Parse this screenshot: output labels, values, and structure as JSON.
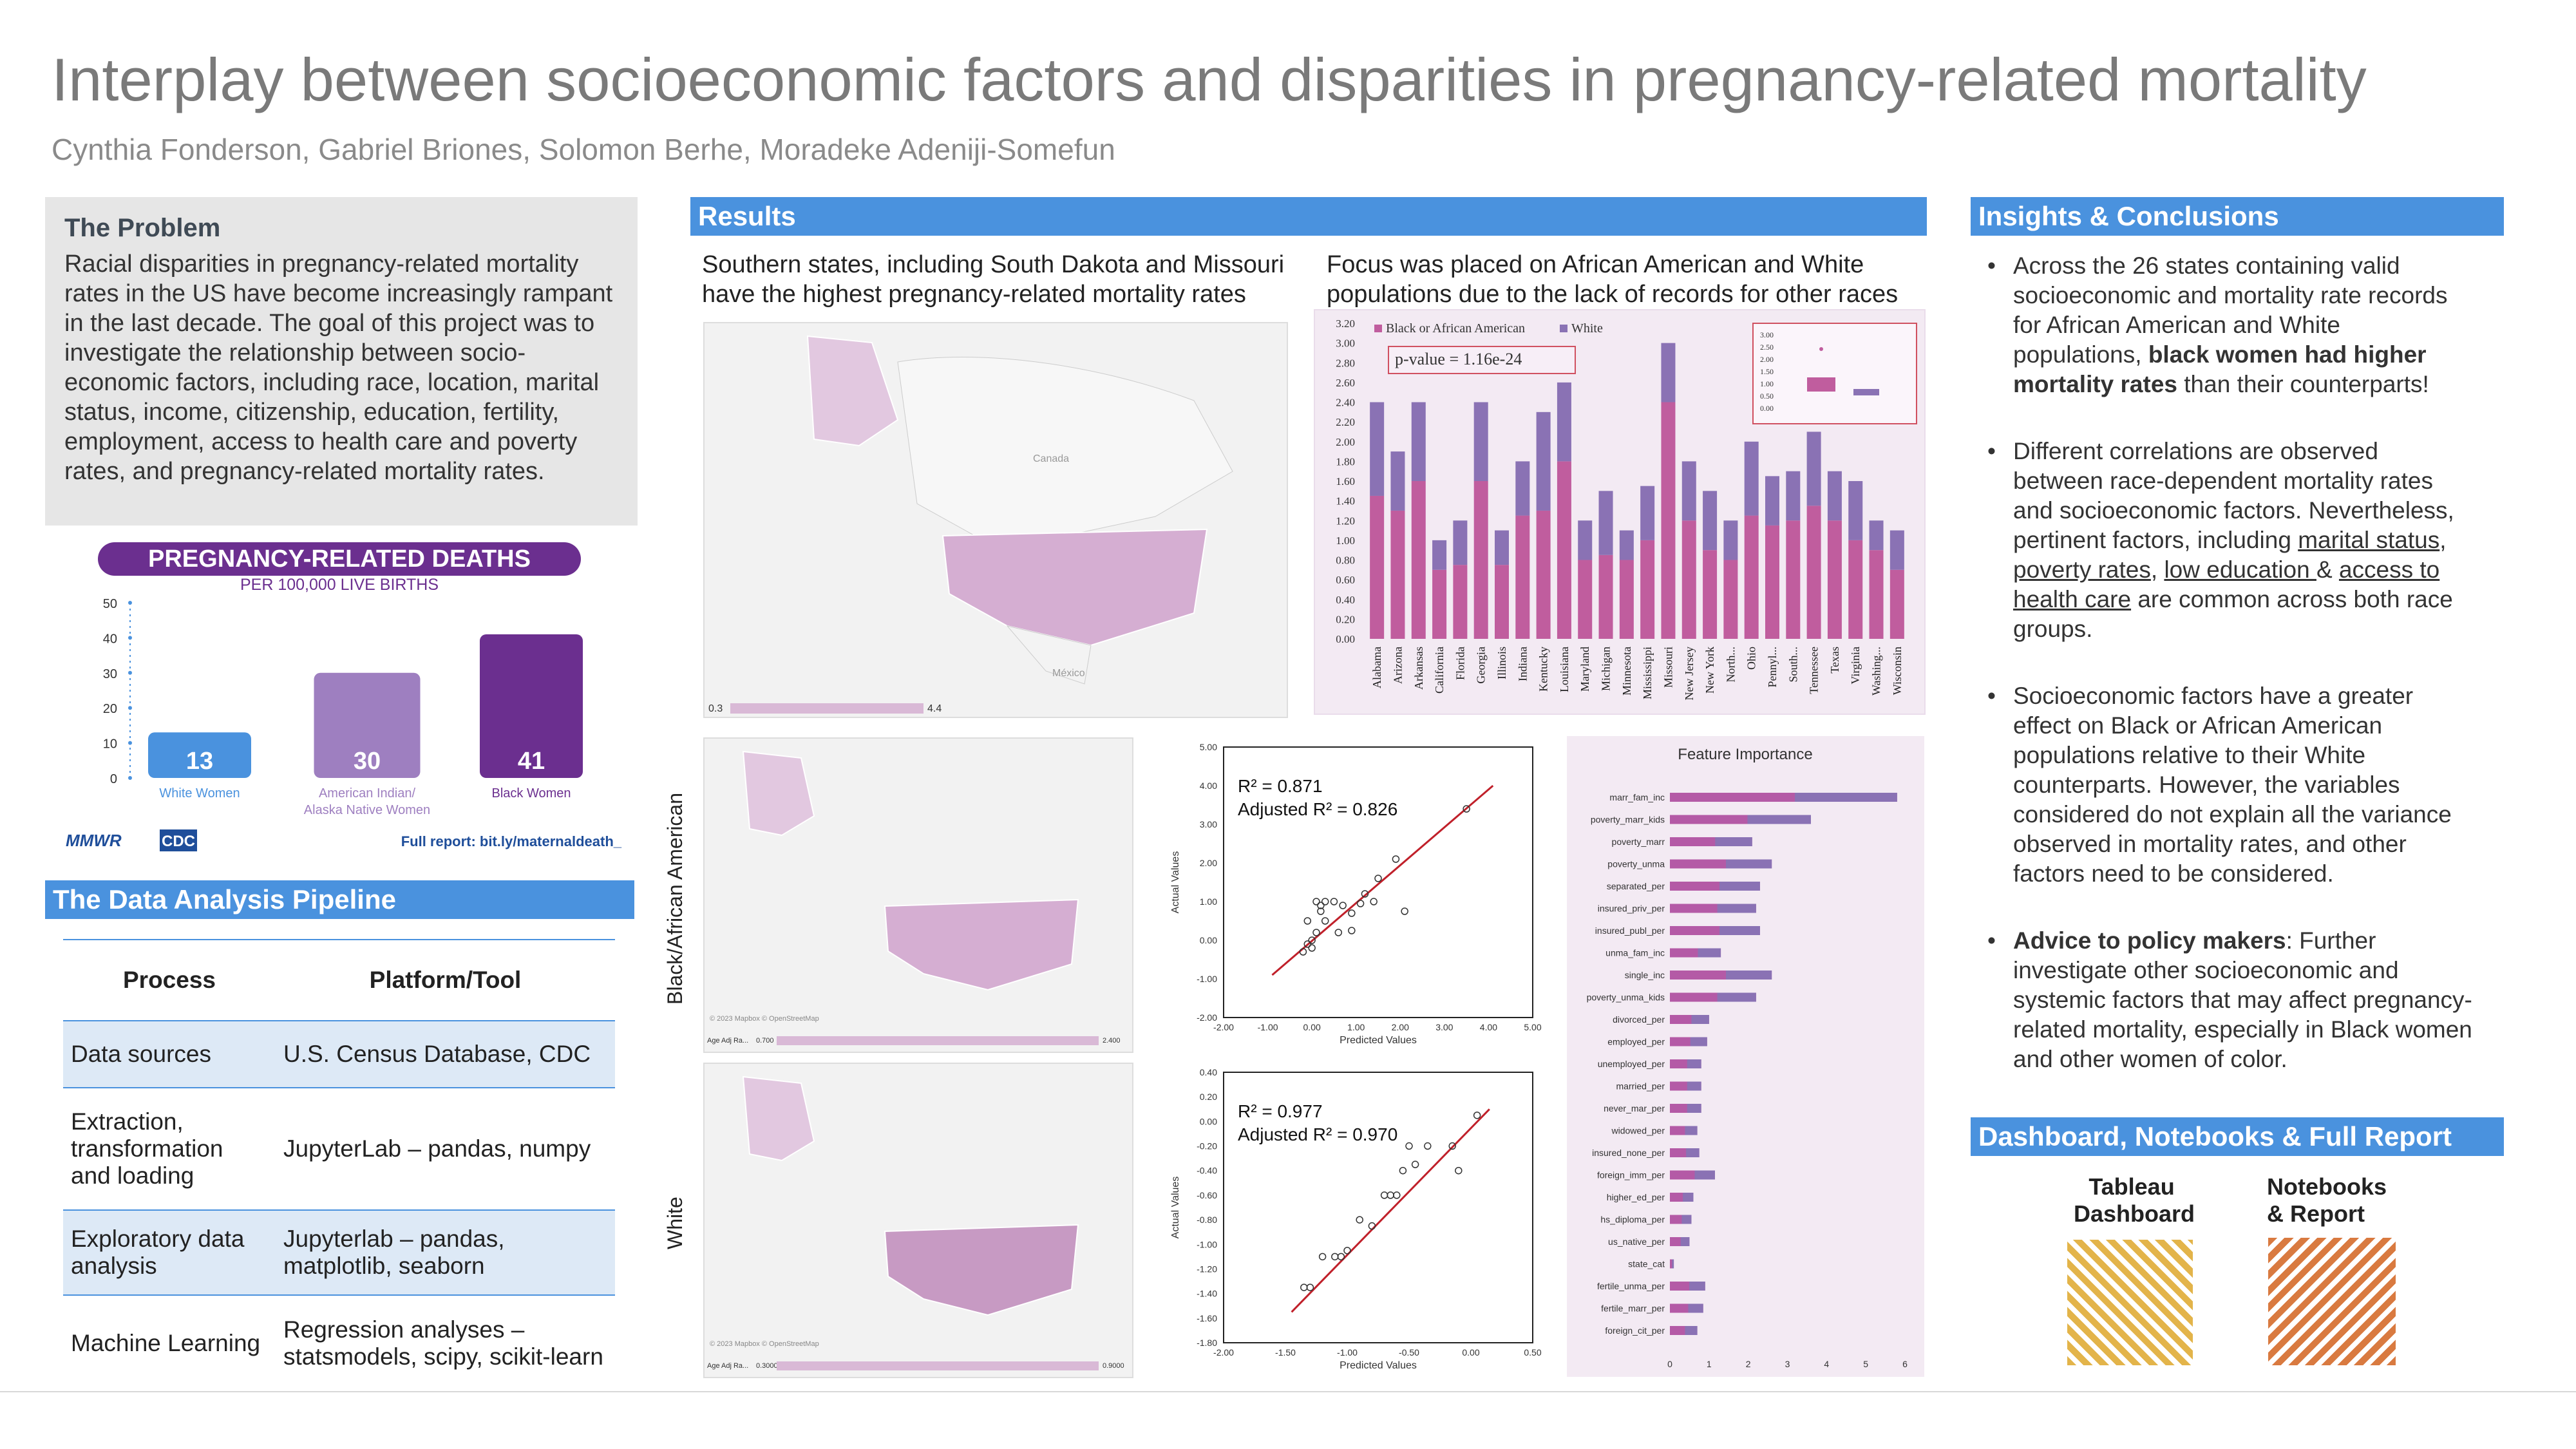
{
  "header": {
    "title": "Interplay between socioeconomic factors and disparities in pregnancy-related mortality",
    "authors": "Cynthia Fonderson, Gabriel Briones, Solomon Berhe, Moradeke Adeniji-Somefun"
  },
  "problem": {
    "heading": "The Problem",
    "text": "Racial disparities in pregnancy-related mortality rates in the US have become increasingly rampant in the last decade. The goal of this project was to investigate the relationship between socio-economic factors, including race, location, marital status, income, citizenship, education, fertility, employment, access to health care and poverty rates, and pregnancy-related mortality rates."
  },
  "mmwr": {
    "title": "PREGNANCY-RELATED DEATHS",
    "subtitle": "PER 100,000 LIVE BIRTHS",
    "yticks": [
      "50",
      "40",
      "30",
      "20",
      "10",
      "0"
    ],
    "bars": [
      {
        "label": "White Women",
        "value": 13,
        "color": "#4a92de"
      },
      {
        "label": "American Indian/ Alaska Native Women",
        "value": 30,
        "color": "#9e7fc0"
      },
      {
        "label": "Black Women",
        "value": 41,
        "color": "#6b2f8f"
      }
    ],
    "logos": "MMWR",
    "cdc": "CDC",
    "report": "Full report: bit.ly/maternaldeath_"
  },
  "pipeline": {
    "heading": "The Data Analysis Pipeline",
    "col1": "Process",
    "col2": "Platform/Tool",
    "rows": [
      {
        "process": "Data sources",
        "tool": "U.S. Census Database, CDC",
        "shade": true
      },
      {
        "process": "Extraction, transformation and loading",
        "tool": "JupyterLab – pandas, numpy",
        "shade": false
      },
      {
        "process": "Exploratory data analysis",
        "tool": "Jupyterlab – pandas, matplotlib, seaborn",
        "shade": true
      },
      {
        "process": "Machine Learning",
        "tool": "Regression analyses – statsmodels, scipy, scikit-learn",
        "shade": false
      }
    ]
  },
  "results": {
    "heading": "Results",
    "caption1": "Southern states, including South Dakota and Missouri have the highest pregnancy-related mortality rates",
    "caption2": "Focus was placed on African American and White populations due to the lack of records for other races",
    "map1_min": "0.3",
    "map1_max": "4.4",
    "map_canada": "Canada",
    "map_mexico": "México",
    "map_credit": "© 2023 Mapbox © OpenStreetMap",
    "map2_legend": "Age Adj Ra...",
    "map2_min": "0.700",
    "map2_max": "2.400",
    "map3_min": "0.3000",
    "map3_max": "0.9000",
    "row_label_black": "Black/African American",
    "row_label_white": "White"
  },
  "chart_data": [
    {
      "type": "bar",
      "title": "",
      "legend": [
        "Black or African American",
        "White"
      ],
      "colors": [
        "#c05d9e",
        "#8a72b4"
      ],
      "annotation": "p-value = 1.16e-24",
      "ylim": [
        0,
        3.2
      ],
      "yticks": [
        "0.00",
        "0.20",
        "0.40",
        "0.60",
        "0.80",
        "1.00",
        "1.20",
        "1.40",
        "1.60",
        "1.80",
        "2.00",
        "2.20",
        "2.40",
        "2.60",
        "2.80",
        "3.00",
        "3.20"
      ],
      "categories": [
        "Alabama",
        "Arizona",
        "Arkansas",
        "California",
        "Florida",
        "Georgia",
        "Illinois",
        "Indiana",
        "Kentucky",
        "Louisiana",
        "Maryland",
        "Michigan",
        "Minnesota",
        "Mississippi",
        "Missouri",
        "New Jersey",
        "New York",
        "North...",
        "Ohio",
        "Pennyl...",
        "South...",
        "Tennessee",
        "Texas",
        "Virginia",
        "Washing...",
        "Wisconsin"
      ],
      "series": [
        {
          "name": "Black or African American",
          "values": [
            1.45,
            1.3,
            1.6,
            0.7,
            0.75,
            1.6,
            0.75,
            1.25,
            1.3,
            1.8,
            0.8,
            0.85,
            0.8,
            1.0,
            2.4,
            1.2,
            0.9,
            0.8,
            1.25,
            1.15,
            1.2,
            1.35,
            1.2,
            1.0,
            0.9,
            0.7
          ]
        },
        {
          "name": "White",
          "values": [
            0.95,
            0.6,
            0.8,
            0.3,
            0.45,
            0.8,
            0.35,
            0.55,
            1.0,
            0.8,
            0.4,
            0.65,
            0.3,
            0.55,
            0.6,
            0.6,
            0.6,
            0.4,
            0.75,
            0.5,
            0.5,
            0.75,
            0.5,
            0.6,
            0.3,
            0.4
          ]
        }
      ],
      "inset_yticks": [
        "3.00",
        "2.50",
        "2.00",
        "1.50",
        "1.00",
        "0.50",
        "0.00"
      ]
    },
    {
      "type": "scatter",
      "title": "",
      "xlabel": "Predicted Values",
      "ylabel": "Actual Values",
      "r2": "R² = 0.871",
      "adj_r2": "Adjusted R² = 0.826",
      "xlim": [
        -2,
        5
      ],
      "ylim": [
        -2,
        5
      ],
      "xticks": [
        "-2.00",
        "-1.00",
        "0.00",
        "1.00",
        "2.00",
        "3.00",
        "4.00",
        "5.00"
      ],
      "yticks": [
        "-2.00",
        "-1.00",
        "0.00",
        "1.00",
        "2.00",
        "3.00",
        "4.00",
        "5.00"
      ],
      "points": [
        [
          3.5,
          3.4
        ],
        [
          1.9,
          2.1
        ],
        [
          1.5,
          1.6
        ],
        [
          1.2,
          1.2
        ],
        [
          1.1,
          0.95
        ],
        [
          0.9,
          0.7
        ],
        [
          0.5,
          1.0
        ],
        [
          0.3,
          1.0
        ],
        [
          0.2,
          0.9
        ],
        [
          0.1,
          1.0
        ],
        [
          0.2,
          0.75
        ],
        [
          0.3,
          0.5
        ],
        [
          0.1,
          0.2
        ],
        [
          0.0,
          0.0
        ],
        [
          -0.1,
          -0.1
        ],
        [
          0.0,
          -0.2
        ],
        [
          -0.2,
          -0.3
        ],
        [
          -0.1,
          0.5
        ],
        [
          0.6,
          0.2
        ],
        [
          0.9,
          0.25
        ],
        [
          1.4,
          1.0
        ],
        [
          2.1,
          0.75
        ],
        [
          0.7,
          0.9
        ]
      ],
      "fit": [
        [
          -0.9,
          -0.9
        ],
        [
          4.1,
          4.0
        ]
      ]
    },
    {
      "type": "scatter",
      "title": "",
      "xlabel": "Predicted Values",
      "ylabel": "Actual Values",
      "r2": "R² = 0.977",
      "adj_r2": "Adjusted R² = 0.970",
      "xlim": [
        -2,
        0.5
      ],
      "ylim": [
        -1.8,
        0.4
      ],
      "xticks": [
        "-2.00",
        "-1.50",
        "-1.00",
        "-0.50",
        "0.00",
        "0.50"
      ],
      "yticks": [
        "-1.80",
        "-1.60",
        "-1.40",
        "-1.20",
        "-1.00",
        "-0.80",
        "-0.60",
        "-0.40",
        "-0.20",
        "0.00",
        "0.20",
        "0.40"
      ],
      "points": [
        [
          0.05,
          0.05
        ],
        [
          -0.15,
          -0.2
        ],
        [
          -0.35,
          -0.2
        ],
        [
          -0.45,
          -0.35
        ],
        [
          -0.5,
          -0.2
        ],
        [
          -0.55,
          -0.4
        ],
        [
          -0.6,
          -0.6
        ],
        [
          -0.65,
          -0.6
        ],
        [
          -0.7,
          -0.6
        ],
        [
          -0.8,
          -0.85
        ],
        [
          -0.9,
          -0.8
        ],
        [
          -1.0,
          -1.05
        ],
        [
          -1.05,
          -1.1
        ],
        [
          -1.2,
          -1.1
        ],
        [
          -1.3,
          -1.35
        ],
        [
          -1.35,
          -1.35
        ],
        [
          -0.1,
          -0.4
        ],
        [
          -1.1,
          -1.1
        ]
      ],
      "fit": [
        [
          -1.45,
          -1.55
        ],
        [
          0.15,
          0.1
        ]
      ]
    },
    {
      "type": "bar",
      "orientation": "horizontal",
      "title": "Feature Importance",
      "xlim": [
        0,
        6
      ],
      "xticks": [
        "0",
        "1",
        "2",
        "3",
        "4",
        "5",
        "6"
      ],
      "categories": [
        "marr_fam_inc",
        "poverty_marr_kids",
        "poverty_marr",
        "poverty_unma",
        "separated_per",
        "insured_priv_per",
        "insured_publ_per",
        "unma_fam_inc",
        "single_inc",
        "poverty_unma_kids",
        "divorced_per",
        "employed_per",
        "unemployed_per",
        "married_per",
        "never_mar_per",
        "widowed_per",
        "insured_none_per",
        "foreign_imm_per",
        "higher_ed_per",
        "hs_diploma_per",
        "us_native_per",
        "state_cat",
        "fertile_unma_per",
        "fertile_marr_per",
        "foreign_cit_per"
      ],
      "series": [
        {
          "name": "",
          "values": [
            5.8,
            3.6,
            2.1,
            2.6,
            2.3,
            2.2,
            2.3,
            1.3,
            2.6,
            2.2,
            1.0,
            0.95,
            0.8,
            0.8,
            0.8,
            0.7,
            0.75,
            1.15,
            0.6,
            0.55,
            0.5,
            0.1,
            0.9,
            0.85,
            0.7
          ]
        }
      ]
    }
  ],
  "insights": {
    "heading": "Insights & Conclusions",
    "b1a": "Across the 26 states containing valid socioeconomic and mortality rate records for African American and White populations, ",
    "b1b": "black women had higher mortality rates",
    "b1c": " than their counterparts!",
    "b2a": "Different correlations are observed between race-dependent mortality rates and socioeconomic factors. Nevertheless, pertinent factors, including ",
    "b2u1": "marital status",
    "b2s1": ", ",
    "b2u2": "poverty rates",
    "b2s2": ", ",
    "b2u3": "low education ",
    "b2s3": "& ",
    "b2u4": "access to health care",
    "b2b": " are common across both race groups.",
    "b3": "Socioeconomic factors have a greater effect on Black or African American populations relative to their White counterparts. However, the variables considered do not explain all the variance observed in mortality rates, and other factors need to be considered.",
    "b4a": "Advice to policy makers",
    "b4b": ": Further investigate other socioeconomic and systemic factors that may affect pregnancy-related mortality, especially in Black women and other women of color."
  },
  "dashboard": {
    "heading": "Dashboard, Notebooks & Full Report",
    "tableau": "Tableau Dashboard",
    "notebooks": "Notebooks & Report"
  }
}
